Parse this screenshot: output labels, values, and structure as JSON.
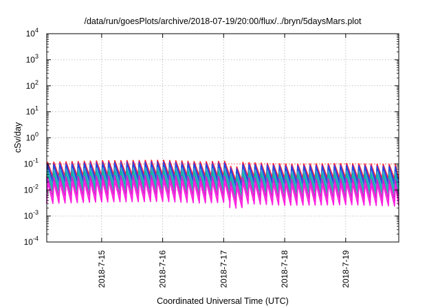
{
  "chart_data": {
    "type": "line",
    "title": "/data/run/goesPlots/archive/2018-07-19/20:00/flux/../bryn/5daysMars.plot",
    "xlabel": "Coordinated Universal Time (UTC)",
    "ylabel": "cSv/day",
    "y_scale": "log",
    "ylim": [
      0.0001,
      10000
    ],
    "xlim": [
      14.1,
      19.87
    ],
    "grid": true,
    "legend": "none",
    "y_ticks": [
      {
        "value": 0.0001,
        "base": "10",
        "exp": "-4"
      },
      {
        "value": 0.001,
        "base": "10",
        "exp": "-3"
      },
      {
        "value": 0.01,
        "base": "10",
        "exp": "-2"
      },
      {
        "value": 0.1,
        "base": "10",
        "exp": "-1"
      },
      {
        "value": 1,
        "base": "10",
        "exp": "0"
      },
      {
        "value": 10,
        "base": "10",
        "exp": "1"
      },
      {
        "value": 100,
        "base": "10",
        "exp": "2"
      },
      {
        "value": 1000,
        "base": "10",
        "exp": "3"
      },
      {
        "value": 10000,
        "base": "10",
        "exp": "4"
      }
    ],
    "x_ticks": [
      {
        "value": 15,
        "label": "2018-7-15"
      },
      {
        "value": 16,
        "label": "2018-7-16"
      },
      {
        "value": 17,
        "label": "2018-7-17"
      },
      {
        "value": 18,
        "label": "2018-7-18"
      },
      {
        "value": 19,
        "label": "2018-7-19"
      }
    ],
    "reference_line": {
      "value": 0.1,
      "color": "#ff3333"
    },
    "series": [
      {
        "color": "#ff2a2a",
        "peak": 0.115,
        "trough": 0.03
      },
      {
        "color": "#7a1fd0",
        "peak": 0.1,
        "trough": 0.022
      },
      {
        "color": "#1f4fe0",
        "peak": 0.09,
        "trough": 0.018
      },
      {
        "color": "#2fa8c8",
        "peak": 0.06,
        "trough": 0.012
      },
      {
        "color": "#13b8a0",
        "peak": 0.045,
        "trough": 0.008
      },
      {
        "color": "#cc22cc",
        "peak": 0.03,
        "trough": 0.005
      },
      {
        "color": "#ff1ee0",
        "peak": 0.02,
        "trough": 0.003
      }
    ],
    "cycle_days": 0.1,
    "peak_envelope": [
      {
        "x": 14.1,
        "f": 1.0
      },
      {
        "x": 15.0,
        "f": 1.15
      },
      {
        "x": 16.0,
        "f": 1.2
      },
      {
        "x": 16.6,
        "f": 1.05
      },
      {
        "x": 17.0,
        "f": 1.1
      },
      {
        "x": 17.15,
        "f": 0.5
      },
      {
        "x": 17.3,
        "f": 1.0
      },
      {
        "x": 18.0,
        "f": 0.85
      },
      {
        "x": 19.0,
        "f": 0.9
      },
      {
        "x": 19.87,
        "f": 0.8
      }
    ]
  }
}
